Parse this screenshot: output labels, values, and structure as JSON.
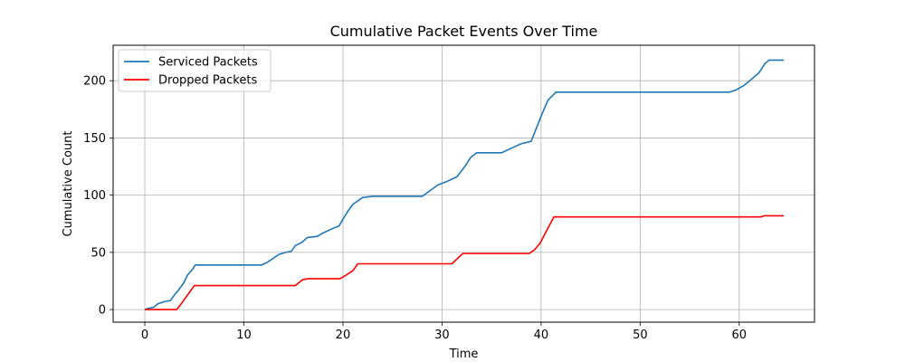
{
  "chart_data": {
    "type": "line",
    "title": "Cumulative Packet Events Over Time",
    "xlabel": "Time",
    "ylabel": "Cumulative Count",
    "xlim": [
      -3.2,
      67.6
    ],
    "ylim": [
      -11,
      231
    ],
    "xticks": [
      0,
      10,
      20,
      30,
      40,
      50,
      60
    ],
    "yticks": [
      0,
      50,
      100,
      150,
      200
    ],
    "grid": true,
    "legend_position": "upper-left",
    "series": [
      {
        "name": "Serviced Packets",
        "color": "#1f77b4",
        "points": [
          [
            0,
            0
          ],
          [
            0.3,
            1
          ],
          [
            0.9,
            2
          ],
          [
            1.3,
            5
          ],
          [
            2.0,
            7
          ],
          [
            2.6,
            8
          ],
          [
            3.0,
            13
          ],
          [
            3.4,
            17
          ],
          [
            3.9,
            23
          ],
          [
            4.3,
            30
          ],
          [
            4.8,
            35
          ],
          [
            5.1,
            39
          ],
          [
            6,
            39
          ],
          [
            8,
            39
          ],
          [
            10,
            39
          ],
          [
            11.8,
            39
          ],
          [
            12.3,
            41
          ],
          [
            13.0,
            45
          ],
          [
            13.5,
            48
          ],
          [
            14.2,
            50
          ],
          [
            14.8,
            51
          ],
          [
            15.2,
            56
          ],
          [
            15.9,
            59
          ],
          [
            16.4,
            63
          ],
          [
            17.4,
            64
          ],
          [
            18.0,
            67
          ],
          [
            19.0,
            71
          ],
          [
            19.6,
            73
          ],
          [
            20.0,
            79
          ],
          [
            20.5,
            86
          ],
          [
            21.0,
            92
          ],
          [
            22.0,
            98
          ],
          [
            23,
            99
          ],
          [
            25,
            99
          ],
          [
            28.0,
            99
          ],
          [
            28.8,
            104
          ],
          [
            29.6,
            109
          ],
          [
            30.5,
            112
          ],
          [
            31.5,
            116
          ],
          [
            32.3,
            125
          ],
          [
            32.9,
            133
          ],
          [
            33.5,
            137
          ],
          [
            34,
            137
          ],
          [
            36.0,
            137
          ],
          [
            37.0,
            141
          ],
          [
            38.0,
            145
          ],
          [
            39.0,
            147
          ],
          [
            39.5,
            158
          ],
          [
            40.0,
            169
          ],
          [
            40.7,
            183
          ],
          [
            41.5,
            190
          ],
          [
            45,
            190
          ],
          [
            50,
            190
          ],
          [
            55,
            190
          ],
          [
            59.0,
            190
          ],
          [
            59.7,
            192
          ],
          [
            60.5,
            196
          ],
          [
            61.2,
            201
          ],
          [
            62.0,
            207
          ],
          [
            62.6,
            215
          ],
          [
            63.0,
            218
          ],
          [
            64.5,
            218
          ]
        ]
      },
      {
        "name": "Dropped Packets",
        "color": "#ff0000",
        "points": [
          [
            0,
            0
          ],
          [
            1,
            0
          ],
          [
            2,
            0
          ],
          [
            3.2,
            0
          ],
          [
            3.5,
            3
          ],
          [
            4.0,
            9
          ],
          [
            4.5,
            15
          ],
          [
            5.0,
            21
          ],
          [
            10,
            21
          ],
          [
            15.2,
            21
          ],
          [
            15.9,
            26
          ],
          [
            16.5,
            27
          ],
          [
            19.7,
            27
          ],
          [
            20.3,
            30
          ],
          [
            21.0,
            34
          ],
          [
            21.5,
            40
          ],
          [
            25,
            40
          ],
          [
            31.0,
            40
          ],
          [
            31.6,
            45
          ],
          [
            32.1,
            49
          ],
          [
            35,
            49
          ],
          [
            38.8,
            49
          ],
          [
            39.3,
            52
          ],
          [
            39.9,
            58
          ],
          [
            40.5,
            68
          ],
          [
            41.3,
            81
          ],
          [
            45,
            81
          ],
          [
            50,
            81
          ],
          [
            55,
            81
          ],
          [
            62.2,
            81
          ],
          [
            62.5,
            82
          ],
          [
            64.5,
            82
          ]
        ]
      }
    ]
  }
}
